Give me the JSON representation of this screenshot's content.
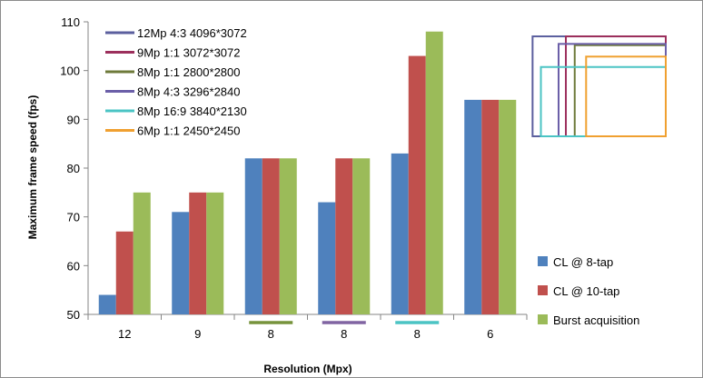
{
  "chart_data": {
    "type": "bar",
    "title": "",
    "xlabel": "Resolution (Mpx)",
    "ylabel": "Maximum frame speed (fps)",
    "ylim": [
      50,
      110
    ],
    "yticks": [
      50,
      60,
      70,
      80,
      90,
      100,
      110
    ],
    "grid": false,
    "categories": [
      "12",
      "9",
      "8",
      "8",
      "8",
      "6"
    ],
    "series": [
      {
        "name": "CL @ 8-tap",
        "color": "#4f81bd",
        "values": [
          54,
          71,
          82,
          73,
          83,
          94
        ]
      },
      {
        "name": "CL @ 10-tap",
        "color": "#c0504d",
        "values": [
          67,
          75,
          82,
          82,
          103,
          94
        ]
      },
      {
        "name": "Burst acquisition",
        "color": "#9bbb59",
        "values": [
          75,
          75,
          82,
          82,
          108,
          94
        ]
      }
    ],
    "legend_position": "right",
    "category_markers": [
      {
        "category_index": 2,
        "color": "#77933c"
      },
      {
        "category_index": 3,
        "color": "#8064a2"
      },
      {
        "category_index": 4,
        "color": "#4bc4c4"
      }
    ],
    "resolution_legend": {
      "position": "top-left",
      "items": [
        {
          "label": "12Mp 4:3 4096*3072",
          "color": "#5b5f9e"
        },
        {
          "label": "9Mp 1:1 3072*3072",
          "color": "#9c2f5c"
        },
        {
          "label": "8Mp 1:1 2800*2800",
          "color": "#6e7a3a"
        },
        {
          "label": "8Mp 4:3 3296*2840",
          "color": "#6b5fa8"
        },
        {
          "label": "8Mp 16:9 3840*2130",
          "color": "#4bc4c4"
        },
        {
          "label": "6Mp 1:1 2450*2450",
          "color": "#f0a030"
        }
      ]
    },
    "sensor_rectangles": [
      {
        "label": "12Mp 4:3 4096*3072",
        "width": 4096,
        "height": 3072,
        "color": "#5b5f9e"
      },
      {
        "label": "9Mp 1:1 3072*3072",
        "width": 3072,
        "height": 3072,
        "color": "#9c2f5c"
      },
      {
        "label": "8Mp 1:1 2800*2800",
        "width": 2800,
        "height": 2800,
        "color": "#6e7a3a"
      },
      {
        "label": "8Mp 4:3 3296*2840",
        "width": 3296,
        "height": 2840,
        "color": "#6b5fa8"
      },
      {
        "label": "8Mp 16:9 3840*2130",
        "width": 3840,
        "height": 2130,
        "color": "#4bc4c4"
      },
      {
        "label": "6Mp 1:1 2450*2450",
        "width": 2450,
        "height": 2450,
        "color": "#f0a030"
      }
    ]
  }
}
